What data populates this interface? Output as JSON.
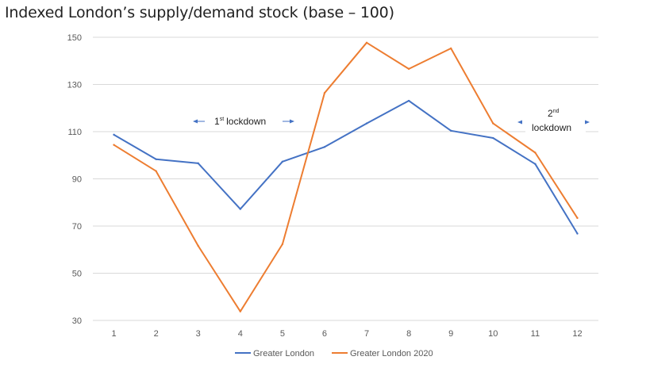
{
  "title": "Indexed London’s supply/demand stock (base – 100)",
  "chart_data": {
    "type": "line",
    "title": "Indexed London’s supply/demand stock (base – 100)",
    "categories": [
      "1",
      "2",
      "3",
      "4",
      "5",
      "6",
      "7",
      "8",
      "9",
      "10",
      "11",
      "12"
    ],
    "ylim": [
      30,
      150
    ],
    "yticks": [
      "30",
      "50",
      "70",
      "90",
      "110",
      "130",
      "150"
    ],
    "grid": true,
    "legend_position": "bottom",
    "series": [
      {
        "name": "Greater London",
        "color": "#4472C4",
        "values": [
          108.7,
          98.3,
          96.6,
          77.2,
          97.3,
          103.5,
          113.5,
          123.1,
          110.4,
          107.3,
          96.3,
          66.8
        ]
      },
      {
        "name": "Greater London 2020",
        "color": "#ED7D31",
        "values": [
          104.4,
          93.3,
          61.6,
          33.8,
          62.3,
          126.4,
          147.7,
          136.6,
          145.3,
          113.5,
          101.1,
          73.4
        ]
      }
    ],
    "annotations": [
      {
        "id": "first",
        "base": "1",
        "sup": "st",
        "text": "lockdown"
      },
      {
        "id": "second",
        "base": "2",
        "sup": "nd",
        "text": "lockdown"
      }
    ]
  }
}
